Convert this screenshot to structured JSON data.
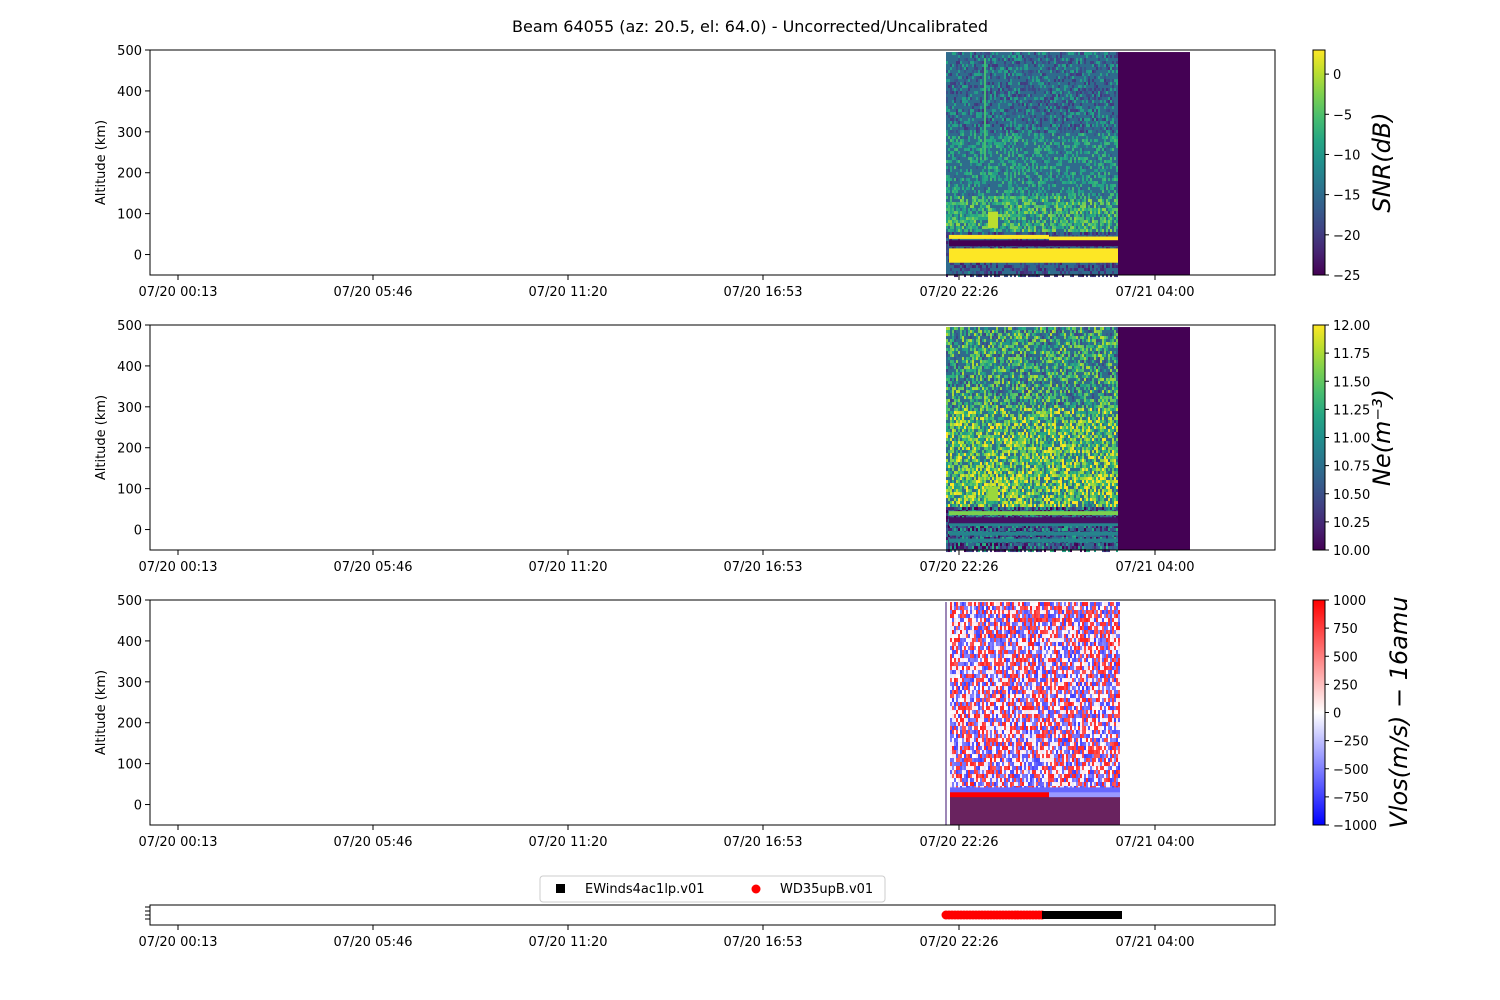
{
  "figure": {
    "title": "Beam 64055 (az: 20.5, el: 64.0) - Uncorrected/Uncalibrated"
  },
  "chart_data": [
    {
      "type": "heatmap",
      "ylabel": "Altitude (km)",
      "xlabel": "",
      "ylim": [
        -50,
        500
      ],
      "yticks": [
        0,
        100,
        200,
        300,
        400,
        500
      ],
      "xtick_labels": [
        "07/20 00:13",
        "07/20 05:46",
        "07/20 11:20",
        "07/20 16:53",
        "07/20 22:26",
        "07/21 04:00"
      ],
      "colorbar": {
        "label": "SNR(dB)",
        "colormap": "viridis",
        "range": [
          -25,
          3
        ],
        "ticks": [
          0,
          -5,
          -10,
          -15,
          -20,
          -25
        ],
        "tick_labels": [
          "0",
          "−5",
          "−10",
          "−15",
          "−20",
          "−25"
        ]
      },
      "grid": false
    },
    {
      "type": "heatmap",
      "ylabel": "Altitude (km)",
      "xlabel": "",
      "ylim": [
        -50,
        500
      ],
      "yticks": [
        0,
        100,
        200,
        300,
        400,
        500
      ],
      "xtick_labels": [
        "07/20 00:13",
        "07/20 05:46",
        "07/20 11:20",
        "07/20 16:53",
        "07/20 22:26",
        "07/21 04:00"
      ],
      "colorbar": {
        "label": "Ne(m⁻³)",
        "colormap": "viridis",
        "range": [
          10,
          12
        ],
        "ticks": [
          12,
          11.75,
          11.5,
          11.25,
          11,
          10.75,
          10.5,
          10.25,
          10
        ],
        "tick_labels": [
          "12.00",
          "11.75",
          "11.50",
          "11.25",
          "11.00",
          "10.75",
          "10.50",
          "10.25",
          "10.00"
        ]
      },
      "grid": false
    },
    {
      "type": "heatmap",
      "ylabel": "Altitude (km)",
      "xlabel": "",
      "ylim": [
        -50,
        500
      ],
      "yticks": [
        0,
        100,
        200,
        300,
        400,
        500
      ],
      "xtick_labels": [
        "07/20 00:13",
        "07/20 05:46",
        "07/20 11:20",
        "07/20 16:53",
        "07/20 22:26",
        "07/21 04:00"
      ],
      "colorbar": {
        "label": "Vlos(m/s) − 16amu",
        "colormap": "bwr",
        "range": [
          -1000,
          1000
        ],
        "ticks": [
          1000,
          750,
          500,
          250,
          0,
          -250,
          -500,
          -750,
          -1000
        ],
        "tick_labels": [
          "1000",
          "750",
          "500",
          "250",
          "0",
          "−250",
          "−500",
          "−750",
          "−1000"
        ]
      },
      "grid": false
    },
    {
      "type": "scatter",
      "xtick_labels": [
        "07/20 00:13",
        "07/20 05:46",
        "07/20 11:20",
        "07/20 16:53",
        "07/20 22:26",
        "07/21 04:00"
      ],
      "legend_position": "top-center",
      "series": [
        {
          "name": "EWinds4ac1lp.v01",
          "color": "#000000",
          "marker": "square",
          "x_range": [
            "07/21 01:08",
            "07/21 03:10"
          ]
        },
        {
          "name": "WD35upB.v01",
          "color": "#ff0000",
          "marker": "circle",
          "x_range": [
            "07/20 21:54",
            "07/21 01:08"
          ]
        }
      ]
    }
  ]
}
